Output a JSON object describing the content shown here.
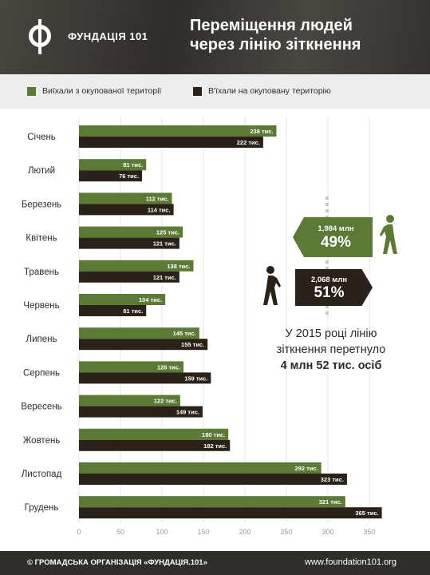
{
  "header": {
    "org_name": "ФУНДАЦІЯ 101",
    "title_line1": "Переміщення людей",
    "title_line2": "через лінію зіткнення"
  },
  "legend": {
    "items": [
      {
        "label": "Виїхали з окупованої території",
        "color": "#5b7a35"
      },
      {
        "label": "В'їхали на окуповану територію",
        "color": "#2a2218"
      }
    ]
  },
  "chart_data": {
    "type": "bar",
    "orientation": "horizontal",
    "categories": [
      "Січень",
      "Лютий",
      "Березень",
      "Квітень",
      "Травень",
      "Червень",
      "Липень",
      "Серпень",
      "Вересень",
      "Жовтень",
      "Листопад",
      "Грудень"
    ],
    "series": [
      {
        "name": "Виїхали з окупованої території",
        "color": "#5b7a35",
        "values": [
          238,
          81,
          112,
          125,
          138,
          104,
          145,
          126,
          122,
          180,
          292,
          321
        ]
      },
      {
        "name": "В'їхали на окуповану територію",
        "color": "#2a2218",
        "values": [
          222,
          76,
          114,
          121,
          121,
          81,
          155,
          159,
          149,
          182,
          323,
          365
        ]
      }
    ],
    "value_suffix": " тис.",
    "xlim": [
      0,
      360
    ],
    "xticks": [
      0,
      50,
      100,
      150,
      200,
      250,
      300,
      350
    ],
    "grid": true
  },
  "info": {
    "out_amount": "1,984 млн",
    "out_percent": "49%",
    "in_amount": "2,068 млн",
    "in_percent": "51%",
    "summary_line1": "У 2015 році лінію",
    "summary_line2": "зіткнення перетнуло",
    "summary_line3": "4 млн 52 тис. осіб"
  },
  "footer": {
    "left": "© ГРОМАДСЬКА ОРГАНІЗАЦІЯ «ФУНДАЦІЯ.101»",
    "right": "www.foundation101.org"
  },
  "icons": [
    "logo-icon",
    "walking-person-icon"
  ]
}
